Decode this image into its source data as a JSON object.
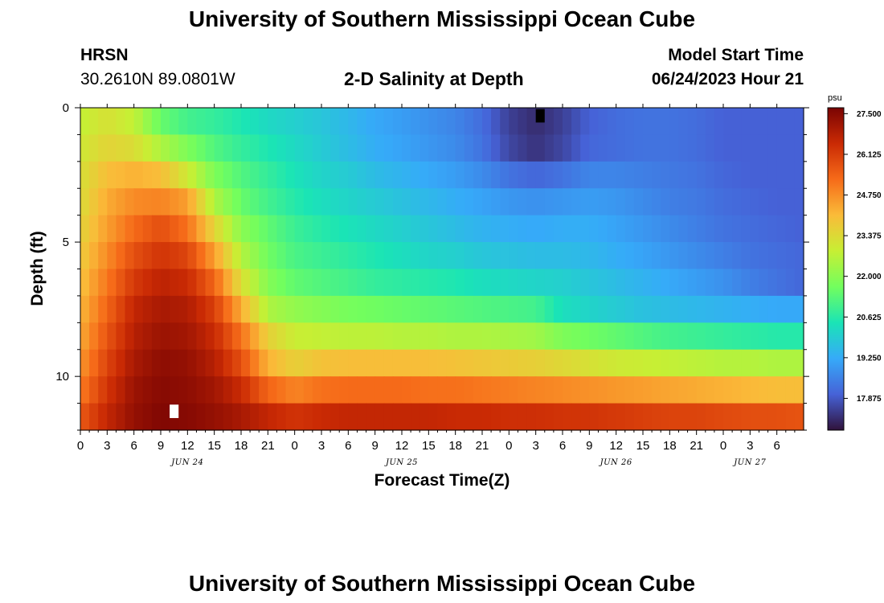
{
  "header": {
    "title": "University of Southern Mississippi Ocean Cube",
    "station": "HRSN",
    "coords": "30.2610N  89.0801W",
    "subtitle": "2-D Salinity at Depth",
    "start_label": "Model Start Time",
    "start_value": "06/24/2023 Hour 21"
  },
  "footer": {
    "title": "University of Southern Mississippi Ocean Cube"
  },
  "colors": {
    "colormap": [
      "#30123b",
      "#4662d7",
      "#36aaf9",
      "#1ae4b6",
      "#72fe5e",
      "#c7ef34",
      "#fabb39",
      "#f66b19",
      "#ca2a04",
      "#7a0403"
    ]
  },
  "chart_data": {
    "type": "heatmap",
    "title": "2-D Salinity at Depth",
    "xlabel": "Forecast Time(Z)",
    "ylabel": "Depth (ft)",
    "x_hours_range": [
      0,
      81
    ],
    "y_depth_range": [
      0,
      12
    ],
    "y_ticks": [
      "0",
      "5",
      "10"
    ],
    "y_tick_values": [
      0,
      5,
      10
    ],
    "x_ticks": [
      "0",
      "3",
      "6",
      "9",
      "12",
      "15",
      "18",
      "21",
      "0",
      "3",
      "6",
      "9",
      "12",
      "15",
      "18",
      "21",
      "0",
      "3",
      "6",
      "9",
      "12",
      "15",
      "18",
      "21",
      "0",
      "3",
      "6"
    ],
    "x_tick_hours": [
      0,
      3,
      6,
      9,
      12,
      15,
      18,
      21,
      24,
      27,
      30,
      33,
      36,
      39,
      42,
      45,
      48,
      51,
      54,
      57,
      60,
      63,
      66,
      69,
      72,
      75,
      78
    ],
    "day_labels": [
      {
        "hour": 12,
        "label": "JUN 24"
      },
      {
        "hour": 36,
        "label": "JUN 25"
      },
      {
        "hour": 60,
        "label": "JUN 26"
      },
      {
        "hour": 75,
        "label": "JUN 27"
      }
    ],
    "colorbar": {
      "unit": "psu",
      "min": 16.8,
      "max": 27.7,
      "ticks": [
        "27.500",
        "26.125",
        "24.750",
        "23.375",
        "22.000",
        "20.625",
        "19.250",
        "17.875"
      ],
      "tick_values": [
        27.5,
        26.125,
        24.75,
        23.375,
        22.0,
        20.625,
        19.25,
        17.875
      ]
    },
    "levels_ft": [
      0.5,
      1.5,
      2.5,
      3.5,
      4.5,
      5.5,
      6.5,
      7.5,
      8.5,
      9.5,
      10.5,
      11.5
    ],
    "hours": [
      0,
      3,
      6,
      9,
      12,
      15,
      18,
      21,
      24,
      27,
      30,
      33,
      36,
      39,
      42,
      45,
      48,
      51,
      54,
      57,
      60,
      63,
      66,
      69,
      72,
      75,
      78,
      81
    ],
    "salinity_psu": [
      [
        22.8,
        23.2,
        22.8,
        21.5,
        21.0,
        20.8,
        20.5,
        20.2,
        20.0,
        19.8,
        19.5,
        19.2,
        19.0,
        18.8,
        18.6,
        18.2,
        17.5,
        17.2,
        17.5,
        18.0,
        18.2,
        18.3,
        18.3,
        18.2,
        18.0,
        18.0,
        18.0,
        18.0
      ],
      [
        23.0,
        23.5,
        23.3,
        22.5,
        21.8,
        21.2,
        20.8,
        20.5,
        20.2,
        19.9,
        19.6,
        19.3,
        19.1,
        18.9,
        18.7,
        18.3,
        17.6,
        17.3,
        17.6,
        18.1,
        18.2,
        18.3,
        18.3,
        18.2,
        18.0,
        18.0,
        18.0,
        18.0
      ],
      [
        23.2,
        24.0,
        24.2,
        24.0,
        23.0,
        21.8,
        21.2,
        20.8,
        20.4,
        20.1,
        19.9,
        19.6,
        19.4,
        19.2,
        19.0,
        18.7,
        18.3,
        18.1,
        18.3,
        18.6,
        18.6,
        18.5,
        18.4,
        18.3,
        18.1,
        18.0,
        18.0,
        18.0
      ],
      [
        23.3,
        24.3,
        24.8,
        24.9,
        24.5,
        22.5,
        21.5,
        21.0,
        20.6,
        20.3,
        20.1,
        19.9,
        19.7,
        19.5,
        19.3,
        19.1,
        18.9,
        18.8,
        18.9,
        19.0,
        18.9,
        18.7,
        18.5,
        18.4,
        18.2,
        18.1,
        18.0,
        18.0
      ],
      [
        23.5,
        24.5,
        25.3,
        25.8,
        25.2,
        23.5,
        22.0,
        21.4,
        20.9,
        20.6,
        20.4,
        20.2,
        20.0,
        19.8,
        19.6,
        19.4,
        19.3,
        19.2,
        19.3,
        19.3,
        19.1,
        18.9,
        18.7,
        18.5,
        18.3,
        18.2,
        18.1,
        18.0
      ],
      [
        23.7,
        24.8,
        25.8,
        26.3,
        26.0,
        24.5,
        22.6,
        21.6,
        21.1,
        20.9,
        20.7,
        20.5,
        20.3,
        20.1,
        20.0,
        19.8,
        19.7,
        19.6,
        19.6,
        19.5,
        19.3,
        19.1,
        18.9,
        18.7,
        18.5,
        18.3,
        18.2,
        18.1
      ],
      [
        23.9,
        25.1,
        26.2,
        26.7,
        26.5,
        25.4,
        23.3,
        21.9,
        21.4,
        21.2,
        21.0,
        20.8,
        20.7,
        20.6,
        20.5,
        20.3,
        20.2,
        20.1,
        20.0,
        19.8,
        19.6,
        19.4,
        19.2,
        19.0,
        18.8,
        18.5,
        18.3,
        18.1
      ],
      [
        24.1,
        25.4,
        26.6,
        27.0,
        26.9,
        26.1,
        24.3,
        22.5,
        22.1,
        21.9,
        21.7,
        21.6,
        21.5,
        21.4,
        21.3,
        21.2,
        21.1,
        21.0,
        20.3,
        20.1,
        19.9,
        19.7,
        19.6,
        19.5,
        19.4,
        19.3,
        19.2,
        19.2
      ],
      [
        24.3,
        25.7,
        26.8,
        27.2,
        27.1,
        26.5,
        25.2,
        23.6,
        22.9,
        22.8,
        22.7,
        22.7,
        22.6,
        22.6,
        22.5,
        22.5,
        22.4,
        22.3,
        21.8,
        21.6,
        21.4,
        21.2,
        21.0,
        20.9,
        20.8,
        20.7,
        20.6,
        20.6
      ],
      [
        24.6,
        26.0,
        27.0,
        27.4,
        27.3,
        26.8,
        25.8,
        24.2,
        23.6,
        23.9,
        24.0,
        24.0,
        24.0,
        24.0,
        23.9,
        23.8,
        23.7,
        23.6,
        23.4,
        23.2,
        23.0,
        22.9,
        22.8,
        22.7,
        22.6,
        22.6,
        22.5,
        22.5
      ],
      [
        25.0,
        26.3,
        27.2,
        27.5,
        27.4,
        27.1,
        26.5,
        25.4,
        24.9,
        25.2,
        25.3,
        25.3,
        25.3,
        25.2,
        25.2,
        25.1,
        25.0,
        24.9,
        24.8,
        24.7,
        24.6,
        24.5,
        24.4,
        24.3,
        24.2,
        24.1,
        24.0,
        24.0
      ],
      [
        25.6,
        26.6,
        27.3,
        27.6,
        27.5,
        27.3,
        27.0,
        26.6,
        26.3,
        26.5,
        26.6,
        26.6,
        26.6,
        26.6,
        26.5,
        26.5,
        26.4,
        26.4,
        26.3,
        26.3,
        26.2,
        26.1,
        26.0,
        26.0,
        25.9,
        25.8,
        25.8,
        25.7
      ]
    ],
    "markers": [
      {
        "hour": 51,
        "level_index": 0,
        "color": "#000000"
      },
      {
        "hour": 10,
        "level_index": 11,
        "color": "#ffffff"
      }
    ]
  }
}
